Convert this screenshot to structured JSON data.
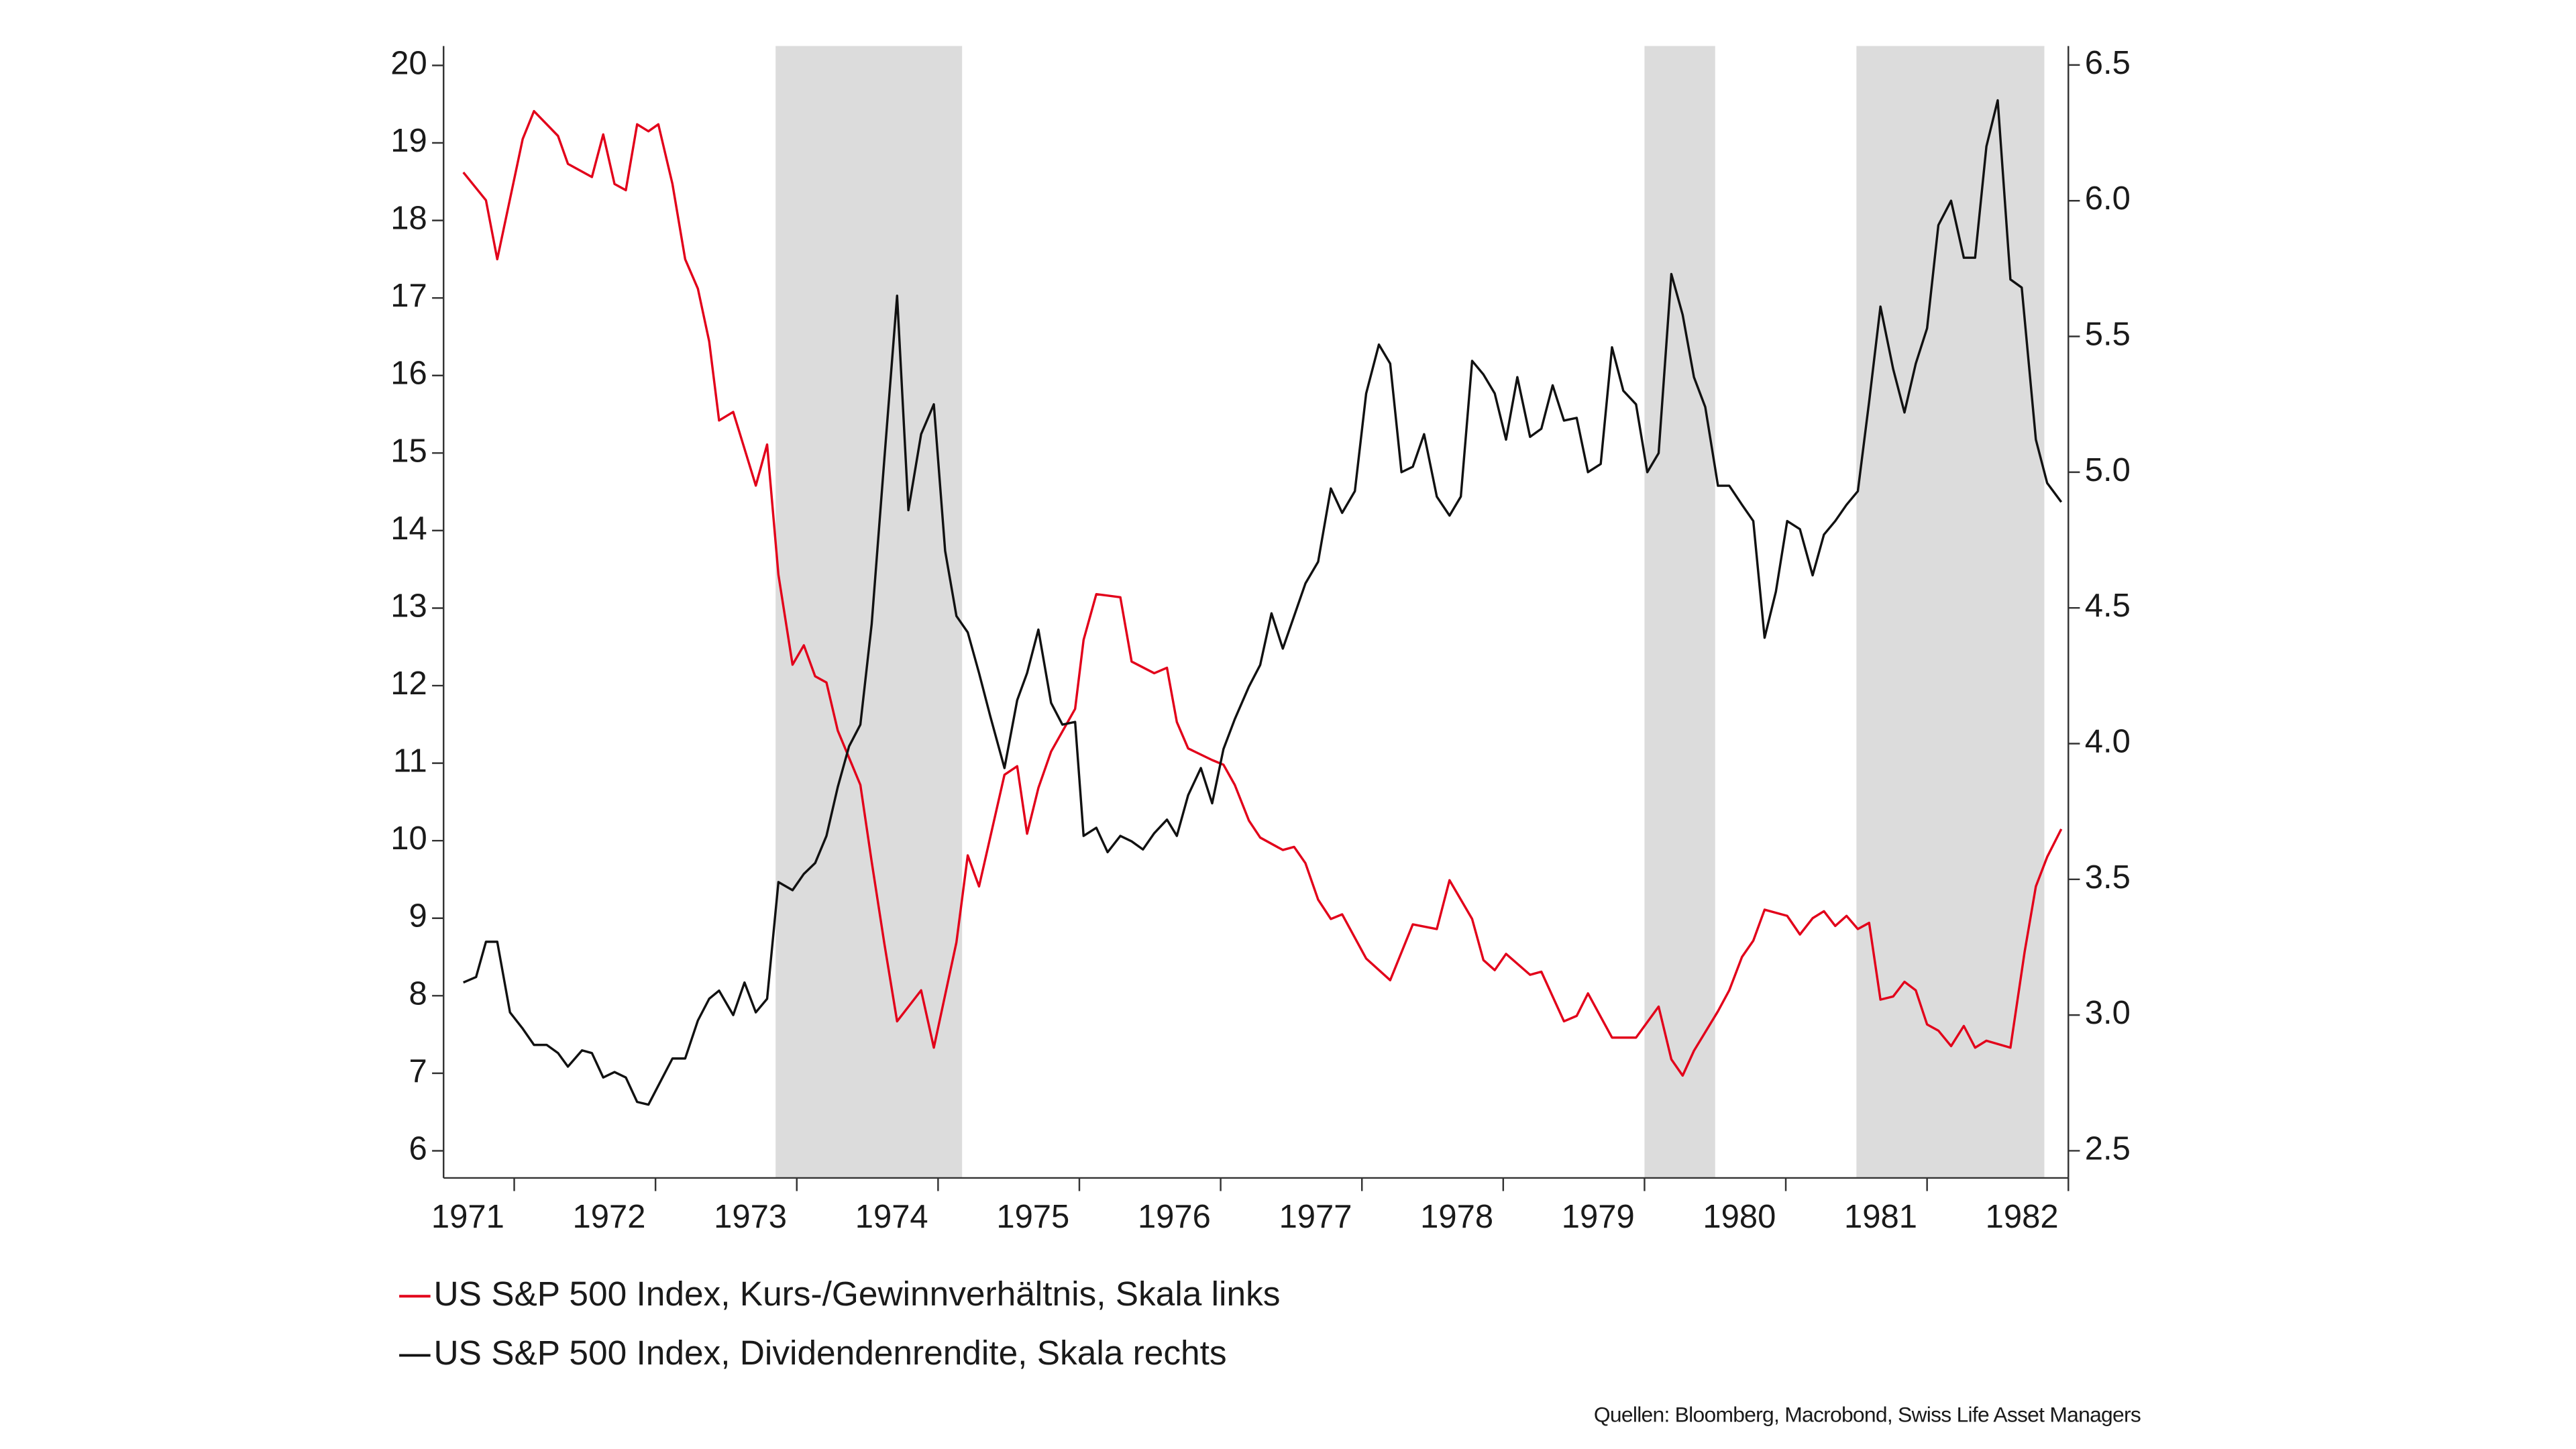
{
  "chart_data": {
    "type": "line",
    "xlim": [
      1971.5,
      1983.0
    ],
    "xticks": [
      {
        "value": 1972,
        "label": "1971"
      },
      {
        "value": 1973,
        "label": "1972"
      },
      {
        "value": 1974,
        "label": "1973"
      },
      {
        "value": 1975,
        "label": "1974"
      },
      {
        "value": 1976,
        "label": "1975"
      },
      {
        "value": 1977,
        "label": "1976"
      },
      {
        "value": 1978,
        "label": "1977"
      },
      {
        "value": 1979,
        "label": "1978"
      },
      {
        "value": 1980,
        "label": "1979"
      },
      {
        "value": 1981,
        "label": "1980"
      },
      {
        "value": 1982,
        "label": "1981"
      },
      {
        "value": 1983,
        "label": "1982"
      }
    ],
    "ylim": [
      5.65,
      20.25
    ],
    "yticks": [
      6,
      7,
      8,
      9,
      10,
      11,
      12,
      13,
      14,
      15,
      16,
      17,
      18,
      19,
      20
    ],
    "y2lim": [
      2.4,
      6.57
    ],
    "y2ticks": [
      {
        "value": 2.5,
        "label": "2.5"
      },
      {
        "value": 3,
        "label": "3.0"
      },
      {
        "value": 3.5,
        "label": "3.5"
      },
      {
        "value": 4,
        "label": "4.0"
      },
      {
        "value": 4.5,
        "label": "4.5"
      },
      {
        "value": 5,
        "label": "5.0"
      },
      {
        "value": 5.5,
        "label": "5.5"
      },
      {
        "value": 6,
        "label": "6.0"
      },
      {
        "value": 6.5,
        "label": "6.5"
      }
    ],
    "shaded": [
      [
        1973.85,
        1975.17
      ],
      [
        1980.0,
        1980.5
      ],
      [
        1981.5,
        1982.83
      ]
    ],
    "shade_color": "#dcdcdc",
    "series": [
      {
        "name": "US S&P 500 Index, Kurs-/Gewinnverhältnis, Skala links",
        "color": "#e2001a",
        "axis": "y",
        "x": [
          1971.64,
          1971.8,
          1971.88,
          1972.06,
          1972.14,
          1972.31,
          1972.38,
          1972.55,
          1972.63,
          1972.71,
          1972.79,
          1972.87,
          1972.95,
          1973.02,
          1973.12,
          1973.21,
          1973.3,
          1973.38,
          1973.45,
          1973.55,
          1973.71,
          1973.79,
          1973.87,
          1973.97,
          1974.05,
          1974.13,
          1974.21,
          1974.29,
          1974.45,
          1974.53,
          1974.62,
          1974.71,
          1974.88,
          1974.97,
          1975.13,
          1975.21,
          1975.29,
          1975.47,
          1975.56,
          1975.63,
          1975.71,
          1975.8,
          1975.97,
          1976.03,
          1976.12,
          1976.29,
          1976.37,
          1976.53,
          1976.62,
          1976.69,
          1976.77,
          1976.94,
          1977.02,
          1977.1,
          1977.2,
          1977.28,
          1977.44,
          1977.52,
          1977.6,
          1977.69,
          1977.78,
          1977.86,
          1978.03,
          1978.2,
          1978.36,
          1978.53,
          1978.62,
          1978.78,
          1978.86,
          1978.94,
          1979.02,
          1979.19,
          1979.27,
          1979.43,
          1979.52,
          1979.6,
          1979.77,
          1979.94,
          1980.1,
          1980.19,
          1980.27,
          1980.35,
          1980.52,
          1980.6,
          1980.69,
          1980.77,
          1980.85,
          1981.01,
          1981.1,
          1981.19,
          1981.27,
          1981.35,
          1981.43,
          1981.51,
          1981.59,
          1981.67,
          1981.76,
          1981.84,
          1981.92,
          1982.0,
          1982.08,
          1982.17,
          1982.26,
          1982.34,
          1982.42,
          1982.59,
          1982.69,
          1982.77,
          1982.85,
          1982.95
        ],
        "values": [
          18.62,
          18.26,
          17.5,
          19.05,
          19.41,
          19.09,
          18.73,
          18.56,
          19.11,
          18.47,
          18.39,
          19.24,
          19.15,
          19.24,
          18.47,
          17.5,
          17.12,
          16.44,
          15.42,
          15.53,
          14.58,
          15.11,
          13.43,
          12.27,
          12.52,
          12.12,
          12.04,
          11.42,
          10.72,
          9.73,
          8.67,
          7.67,
          8.07,
          7.33,
          8.69,
          9.81,
          9.41,
          10.85,
          10.96,
          10.09,
          10.68,
          11.15,
          11.7,
          12.59,
          13.18,
          13.14,
          12.31,
          12.16,
          12.23,
          11.53,
          11.19,
          11.04,
          10.98,
          10.72,
          10.26,
          10.04,
          9.88,
          9.92,
          9.71,
          9.24,
          8.99,
          9.05,
          8.48,
          8.2,
          8.92,
          8.86,
          9.49,
          8.99,
          8.46,
          8.33,
          8.54,
          8.27,
          8.31,
          7.67,
          7.74,
          8.03,
          7.46,
          7.46,
          7.86,
          7.18,
          6.97,
          7.29,
          7.8,
          8.07,
          8.5,
          8.71,
          9.11,
          9.03,
          8.79,
          9.0,
          9.09,
          8.9,
          9.03,
          8.86,
          8.94,
          7.95,
          7.99,
          8.18,
          8.07,
          7.63,
          7.55,
          7.35,
          7.61,
          7.33,
          7.42,
          7.33,
          8.56,
          9.41,
          9.79,
          10.15
        ]
      },
      {
        "name": "US S&P 500 Index, Dividendenrendite, Skala rechts",
        "color": "#111111",
        "axis": "y2",
        "x": [
          1971.64,
          1971.73,
          1971.8,
          1971.88,
          1971.97,
          1972.06,
          1972.14,
          1972.23,
          1972.31,
          1972.38,
          1972.48,
          1972.55,
          1972.63,
          1972.71,
          1972.79,
          1972.87,
          1972.95,
          1973.02,
          1973.12,
          1973.21,
          1973.3,
          1973.38,
          1973.45,
          1973.55,
          1973.63,
          1973.71,
          1973.79,
          1973.87,
          1973.97,
          1974.05,
          1974.13,
          1974.21,
          1974.29,
          1974.37,
          1974.45,
          1974.53,
          1974.62,
          1974.71,
          1974.79,
          1974.88,
          1974.97,
          1975.05,
          1975.13,
          1975.21,
          1975.29,
          1975.37,
          1975.47,
          1975.56,
          1975.63,
          1975.71,
          1975.8,
          1975.88,
          1975.97,
          1976.03,
          1976.12,
          1976.2,
          1976.29,
          1976.37,
          1976.45,
          1976.53,
          1976.62,
          1976.69,
          1976.77,
          1976.86,
          1976.94,
          1977.02,
          1977.1,
          1977.2,
          1977.28,
          1977.36,
          1977.44,
          1977.52,
          1977.6,
          1977.69,
          1977.78,
          1977.86,
          1977.95,
          1978.03,
          1978.12,
          1978.2,
          1978.28,
          1978.36,
          1978.44,
          1978.53,
          1978.62,
          1978.7,
          1978.78,
          1978.86,
          1978.94,
          1979.02,
          1979.1,
          1979.19,
          1979.27,
          1979.35,
          1979.43,
          1979.52,
          1979.6,
          1979.69,
          1979.77,
          1979.85,
          1979.94,
          1980.02,
          1980.1,
          1980.19,
          1980.27,
          1980.35,
          1980.43,
          1980.52,
          1980.6,
          1980.69,
          1980.77,
          1980.85,
          1980.93,
          1981.01,
          1981.1,
          1981.19,
          1981.27,
          1981.35,
          1981.43,
          1981.51,
          1981.59,
          1981.67,
          1981.76,
          1981.84,
          1981.92,
          1982.0,
          1982.08,
          1982.17,
          1982.26,
          1982.34,
          1982.42,
          1982.5,
          1982.59,
          1982.67,
          1982.77,
          1982.85,
          1982.95
        ],
        "values": [
          3.12,
          3.14,
          3.27,
          3.27,
          3.01,
          2.95,
          2.89,
          2.89,
          2.86,
          2.81,
          2.87,
          2.86,
          2.77,
          2.79,
          2.77,
          2.68,
          2.67,
          2.74,
          2.84,
          2.84,
          2.98,
          3.06,
          3.09,
          3.0,
          3.12,
          3.01,
          3.06,
          3.49,
          3.46,
          3.52,
          3.56,
          3.66,
          3.84,
          3.99,
          4.07,
          4.44,
          5.05,
          5.65,
          4.86,
          5.14,
          5.25,
          4.71,
          4.47,
          4.41,
          4.26,
          4.1,
          3.91,
          4.16,
          4.26,
          4.42,
          4.15,
          4.07,
          4.08,
          3.66,
          3.69,
          3.6,
          3.66,
          3.64,
          3.61,
          3.67,
          3.72,
          3.66,
          3.81,
          3.91,
          3.78,
          3.98,
          4.09,
          4.21,
          4.29,
          4.48,
          4.35,
          4.47,
          4.59,
          4.67,
          4.94,
          4.85,
          4.93,
          5.29,
          5.47,
          5.4,
          5.0,
          5.02,
          5.14,
          4.91,
          4.84,
          4.91,
          5.41,
          5.36,
          5.29,
          5.12,
          5.35,
          5.13,
          5.16,
          5.32,
          5.19,
          5.2,
          5.0,
          5.03,
          5.46,
          5.3,
          5.25,
          5.0,
          5.07,
          5.73,
          5.58,
          5.35,
          5.24,
          4.95,
          4.95,
          4.88,
          4.82,
          4.39,
          4.56,
          4.82,
          4.79,
          4.62,
          4.77,
          4.82,
          4.88,
          4.93,
          5.26,
          5.61,
          5.38,
          5.22,
          5.4,
          5.53,
          5.91,
          6.0,
          5.79,
          5.79,
          6.2,
          6.37,
          5.71,
          5.68,
          5.12,
          4.96,
          4.89
        ]
      }
    ],
    "source": "Quellen: Bloomberg, Macrobond, Swiss Life Asset Managers"
  }
}
